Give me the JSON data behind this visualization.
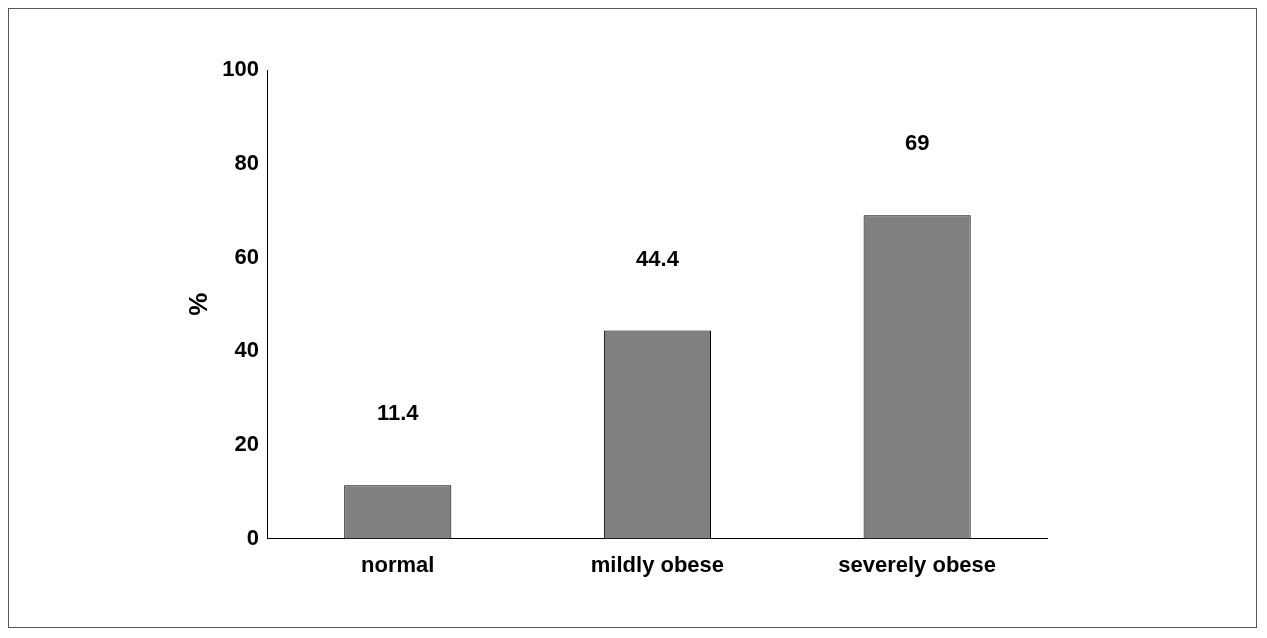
{
  "chart_data": {
    "type": "bar",
    "ylabel": "%",
    "categories": [
      "normal",
      "mildly obese",
      "severely obese"
    ],
    "values": [
      11.4,
      44.4,
      69
    ],
    "color": "#808080",
    "ylim": [
      0,
      100
    ],
    "yticks": [
      0,
      20,
      40,
      60,
      80,
      100
    ],
    "grid": false,
    "legend": false,
    "data_labels": true
  }
}
